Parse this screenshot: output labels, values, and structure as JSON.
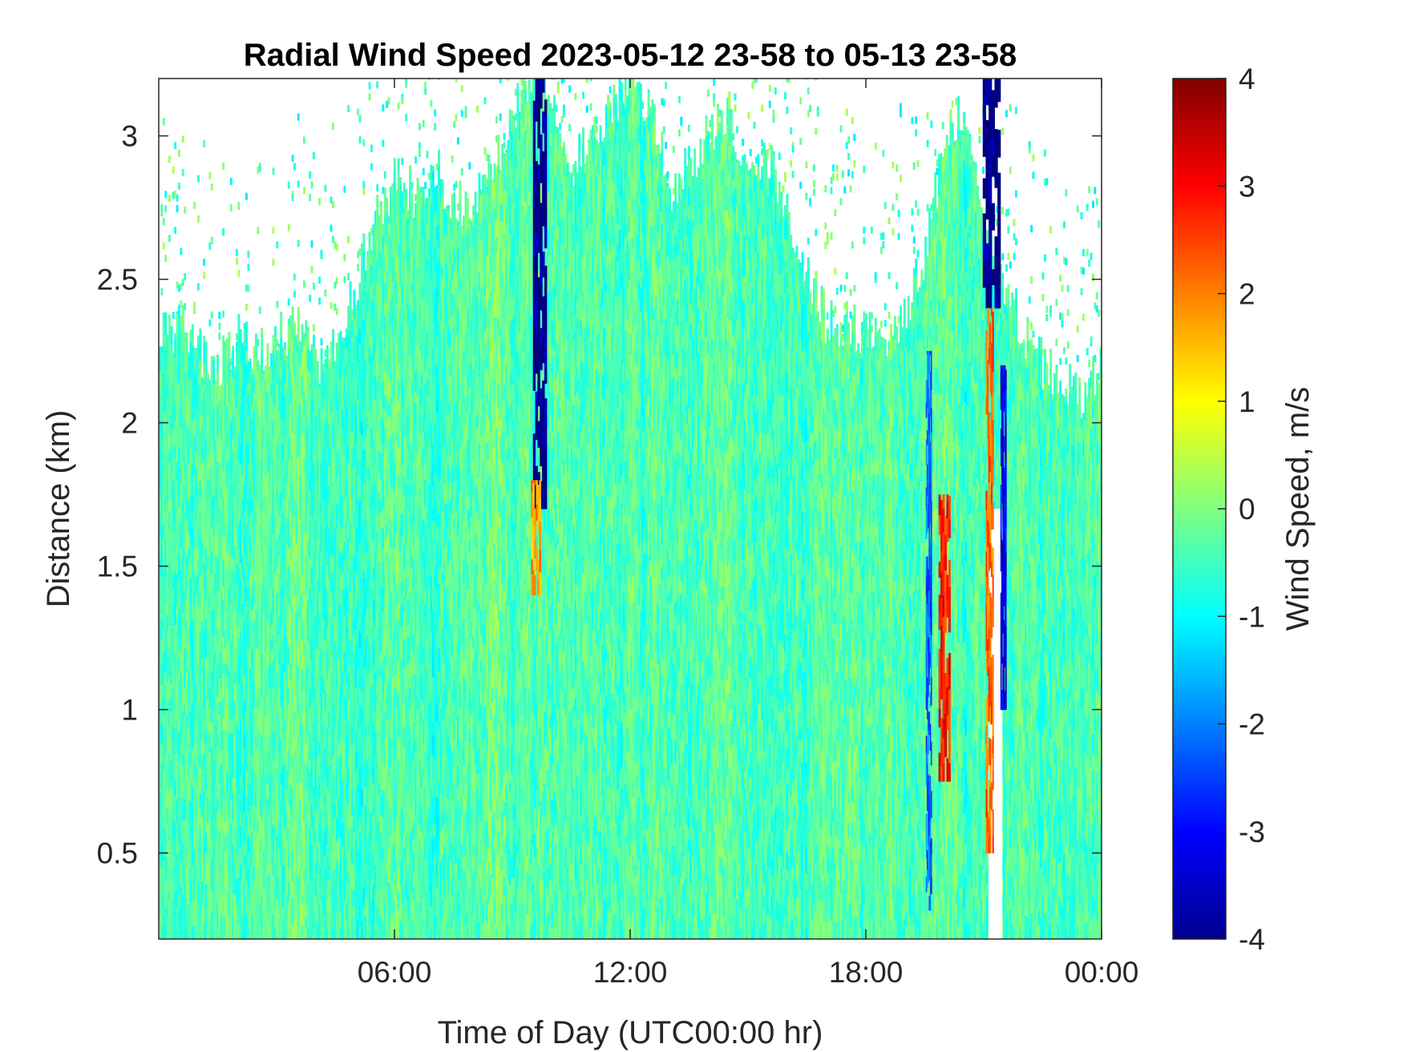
{
  "chart_data": {
    "type": "heatmap",
    "title": "Radial Wind Speed 2023-05-12 23-58 to 05-13 23-58",
    "xlabel": "Time of Day (UTC00:00 hr)",
    "ylabel": "Distance (km)",
    "colorbar_label": "Wind Speed, m/s",
    "colormap": "jet",
    "xlim": [
      0,
      24
    ],
    "ylim": [
      0.2,
      3.2
    ],
    "clim": [
      -4,
      4
    ],
    "x_ticks": [
      6,
      12,
      18,
      24
    ],
    "x_tick_labels": [
      "06:00",
      "12:00",
      "18:00",
      "00:00"
    ],
    "y_ticks": [
      0.5,
      1,
      1.5,
      2,
      2.5,
      3
    ],
    "y_tick_labels": [
      "0.5",
      "1",
      "1.5",
      "2",
      "2.5",
      "3"
    ],
    "c_ticks": [
      -4,
      -3,
      -2,
      -1,
      0,
      1,
      2,
      3,
      4
    ],
    "c_tick_labels": [
      "-4",
      "-3",
      "-2",
      "-1",
      "0",
      "1",
      "2",
      "3",
      "4"
    ],
    "background_value": -0.4,
    "max_range_profile": {
      "time_hr": [
        0,
        0.5,
        1,
        1.5,
        2,
        2.5,
        3,
        3.5,
        4,
        4.5,
        5,
        5.5,
        6,
        6.5,
        7,
        7.5,
        8,
        8.5,
        9,
        9.5,
        10,
        10.5,
        11,
        11.5,
        12,
        12.5,
        13,
        13.5,
        14,
        14.5,
        15,
        15.5,
        16,
        16.5,
        17,
        17.5,
        18,
        18.5,
        19,
        19.5,
        20,
        20.5,
        21,
        21.5,
        22,
        22.5,
        23,
        23.5,
        24
      ],
      "range_km": [
        2.3,
        2.35,
        2.25,
        2.2,
        2.3,
        2.25,
        2.3,
        2.35,
        2.2,
        2.25,
        2.5,
        2.7,
        2.85,
        2.8,
        2.9,
        2.75,
        2.8,
        2.9,
        3.1,
        3.2,
        3.15,
        2.9,
        3.0,
        3.1,
        3.2,
        3.1,
        2.8,
        2.9,
        3.0,
        3.1,
        2.85,
        2.9,
        2.75,
        2.5,
        2.35,
        2.35,
        2.3,
        2.3,
        2.4,
        2.6,
        3.0,
        3.1,
        2.6,
        2.5,
        2.3,
        2.2,
        2.15,
        2.1,
        2.2
      ]
    },
    "features": [
      {
        "time_hr": 9.7,
        "width_hr": 0.35,
        "range_km": [
          1.7,
          3.2
        ],
        "value": -4
      },
      {
        "time_hr": 9.6,
        "width_hr": 0.25,
        "range_km": [
          1.4,
          1.8
        ],
        "value": 1.8
      },
      {
        "time_hr": 20.0,
        "width_hr": 0.3,
        "range_km": [
          0.75,
          1.75
        ],
        "value": 2.8
      },
      {
        "time_hr": 19.6,
        "width_hr": 0.15,
        "range_km": [
          0.3,
          2.25
        ],
        "value": -2.2
      },
      {
        "time_hr": 21.2,
        "width_hr": 0.45,
        "range_km": [
          2.4,
          3.2
        ],
        "value": -4
      },
      {
        "time_hr": 21.15,
        "width_hr": 0.2,
        "range_km": [
          0.5,
          2.4
        ],
        "value": 2.2
      },
      {
        "time_hr": 21.5,
        "width_hr": 0.15,
        "range_km": [
          1.0,
          2.2
        ],
        "value": -3.2
      }
    ],
    "no_data_columns": [
      {
        "time_hr": 21.3,
        "width_hr": 0.35,
        "range_km": [
          0.2,
          1.7
        ]
      }
    ]
  }
}
